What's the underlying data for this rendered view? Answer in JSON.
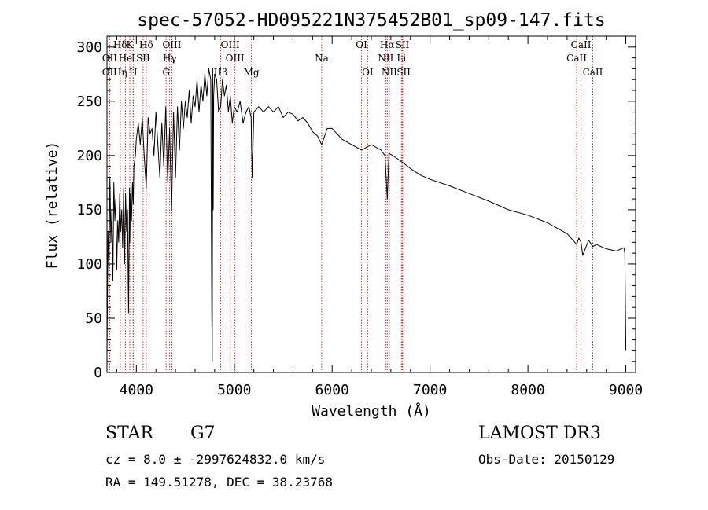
{
  "chart_data": {
    "type": "line",
    "title": "spec-57052-HD095221N375452B01_sp09-147.fits",
    "xlabel": "Wavelength (Å)",
    "ylabel": "Flux (relative)",
    "xlim": [
      3700,
      9100
    ],
    "ylim": [
      0,
      310
    ],
    "xticks": [
      4000,
      5000,
      6000,
      7000,
      8000,
      9000
    ],
    "yticks": [
      0,
      50,
      100,
      150,
      200,
      250,
      300
    ],
    "series": [
      {
        "name": "flux",
        "x": [
          3700,
          3705,
          3710,
          3720,
          3730,
          3740,
          3750,
          3760,
          3770,
          3780,
          3790,
          3800,
          3810,
          3820,
          3830,
          3840,
          3850,
          3860,
          3870,
          3880,
          3890,
          3900,
          3910,
          3920,
          3930,
          3933,
          3940,
          3950,
          3960,
          3968,
          3975,
          3990,
          4000,
          4020,
          4040,
          4060,
          4080,
          4101,
          4120,
          4140,
          4160,
          4180,
          4200,
          4220,
          4240,
          4260,
          4280,
          4300,
          4320,
          4340,
          4360,
          4380,
          4400,
          4420,
          4440,
          4460,
          4480,
          4500,
          4520,
          4540,
          4560,
          4580,
          4600,
          4620,
          4640,
          4660,
          4680,
          4700,
          4720,
          4740,
          4760,
          4770,
          4775,
          4780,
          4785,
          4790,
          4800,
          4820,
          4840,
          4861,
          4880,
          4900,
          4920,
          4940,
          4960,
          4980,
          5000,
          5030,
          5060,
          5090,
          5120,
          5150,
          5172,
          5183,
          5200,
          5250,
          5300,
          5350,
          5400,
          5450,
          5500,
          5550,
          5600,
          5650,
          5700,
          5750,
          5800,
          5850,
          5893,
          5950,
          6000,
          6100,
          6200,
          6300,
          6400,
          6500,
          6540,
          6563,
          6580,
          6620,
          6700,
          6800,
          6900,
          7000,
          7200,
          7400,
          7600,
          7800,
          8000,
          8200,
          8400,
          8498,
          8520,
          8542,
          8560,
          8620,
          8662,
          8700,
          8800,
          8900,
          8980,
          8990,
          9000
        ],
        "values": [
          15,
          70,
          130,
          95,
          180,
          120,
          150,
          85,
          175,
          140,
          160,
          95,
          140,
          120,
          165,
          130,
          150,
          115,
          170,
          100,
          165,
          130,
          150,
          55,
          170,
          120,
          165,
          140,
          175,
          155,
          190,
          200,
          215,
          230,
          210,
          235,
          200,
          170,
          235,
          220,
          225,
          200,
          240,
          210,
          180,
          230,
          190,
          245,
          175,
          225,
          150,
          240,
          180,
          245,
          205,
          250,
          225,
          250,
          235,
          260,
          230,
          255,
          245,
          270,
          240,
          265,
          250,
          275,
          255,
          280,
          270,
          60,
          10,
          280,
          150,
          255,
          275,
          270,
          240,
          245,
          270,
          255,
          265,
          240,
          255,
          230,
          245,
          240,
          250,
          230,
          240,
          245,
          235,
          180,
          240,
          245,
          240,
          245,
          240,
          245,
          235,
          240,
          238,
          232,
          235,
          230,
          222,
          218,
          210,
          225,
          225,
          215,
          210,
          205,
          210,
          205,
          200,
          160,
          202,
          200,
          195,
          188,
          182,
          178,
          172,
          165,
          158,
          150,
          145,
          138,
          128,
          118,
          124,
          120,
          108,
          122,
          116,
          118,
          114,
          112,
          115,
          110,
          20
        ]
      }
    ],
    "line_markers": [
      {
        "label": "Hδ",
        "x": 3835,
        "row": 1
      },
      {
        "label": "K",
        "x": 3933,
        "row": 1
      },
      {
        "label": "Hδ",
        "x": 4101,
        "row": 1
      },
      {
        "label": "OIII",
        "x": 4363,
        "row": 1
      },
      {
        "label": "OIII",
        "x": 4959,
        "row": 1
      },
      {
        "label": "OI",
        "x": 6300,
        "row": 1
      },
      {
        "label": "Hα",
        "x": 6563,
        "row": 1
      },
      {
        "label": "SII",
        "x": 6717,
        "row": 1
      },
      {
        "label": "CaII",
        "x": 8542,
        "row": 1
      },
      {
        "label": "OII",
        "x": 3727,
        "row": 2
      },
      {
        "label": "He",
        "x": 3889,
        "row": 2
      },
      {
        "label": "I",
        "x": 3968,
        "row": 2
      },
      {
        "label": "SII",
        "x": 4069,
        "row": 2
      },
      {
        "label": "Hγ",
        "x": 4340,
        "row": 2
      },
      {
        "label": "OIII",
        "x": 5007,
        "row": 2
      },
      {
        "label": "Na",
        "x": 5893,
        "row": 2
      },
      {
        "label": "NII",
        "x": 6548,
        "row": 2
      },
      {
        "label": "Li",
        "x": 6708,
        "row": 2
      },
      {
        "label": "CaII",
        "x": 8498,
        "row": 2
      },
      {
        "label": "OII",
        "x": 3727,
        "row": 3
      },
      {
        "label": "Hη",
        "x": 3835,
        "row": 3
      },
      {
        "label": "H",
        "x": 3968,
        "row": 3
      },
      {
        "label": "G",
        "x": 4304,
        "row": 3
      },
      {
        "label": "Hβ",
        "x": 4861,
        "row": 3
      },
      {
        "label": "Mg",
        "x": 5175,
        "row": 3
      },
      {
        "label": "OI",
        "x": 6363,
        "row": 3
      },
      {
        "label": "NII",
        "x": 6584,
        "row": 3
      },
      {
        "label": "SII",
        "x": 6731,
        "row": 3
      },
      {
        "label": "CaII",
        "x": 8662,
        "row": 3
      }
    ],
    "colors": {
      "spectrum": "#000000",
      "marker": "#cc2222",
      "axes": "#000000"
    }
  },
  "info": {
    "object_class": "STAR",
    "subclass": "G7",
    "survey": "LAMOST DR3",
    "cz": "cz = 8.0 ± -2997624832.0 km/s",
    "obs_date": "Obs-Date: 20150129",
    "coords": "RA = 149.51278, DEC =  38.23768"
  }
}
